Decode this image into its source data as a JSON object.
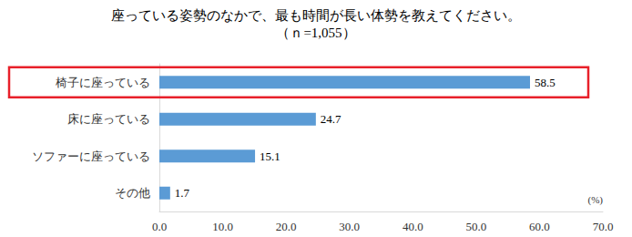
{
  "chart_data": {
    "type": "bar",
    "title": "座っている姿勢のなかで、最も時間が長い体勢を教えてください。",
    "subtitle": "（ｎ=1,055）",
    "orientation": "horizontal",
    "categories": [
      "椅子に座っている",
      "床に座っている",
      "ソファーに座っている",
      "その他"
    ],
    "values": [
      58.5,
      24.7,
      15.1,
      1.7
    ],
    "color": "#5b9bd5",
    "xlabel": "(%)",
    "xlim": [
      0,
      70
    ],
    "xticks": [
      {
        "value": 0,
        "label": "0.0"
      },
      {
        "value": 10,
        "label": "10.0"
      },
      {
        "value": 20,
        "label": "20.0"
      },
      {
        "value": 30,
        "label": "30.0"
      },
      {
        "value": 40,
        "label": "40.0"
      },
      {
        "value": 50,
        "label": "50.0"
      },
      {
        "value": 60,
        "label": "60.0"
      },
      {
        "value": 70,
        "label": "70.0"
      }
    ],
    "grid": false,
    "data_labels": true
  }
}
